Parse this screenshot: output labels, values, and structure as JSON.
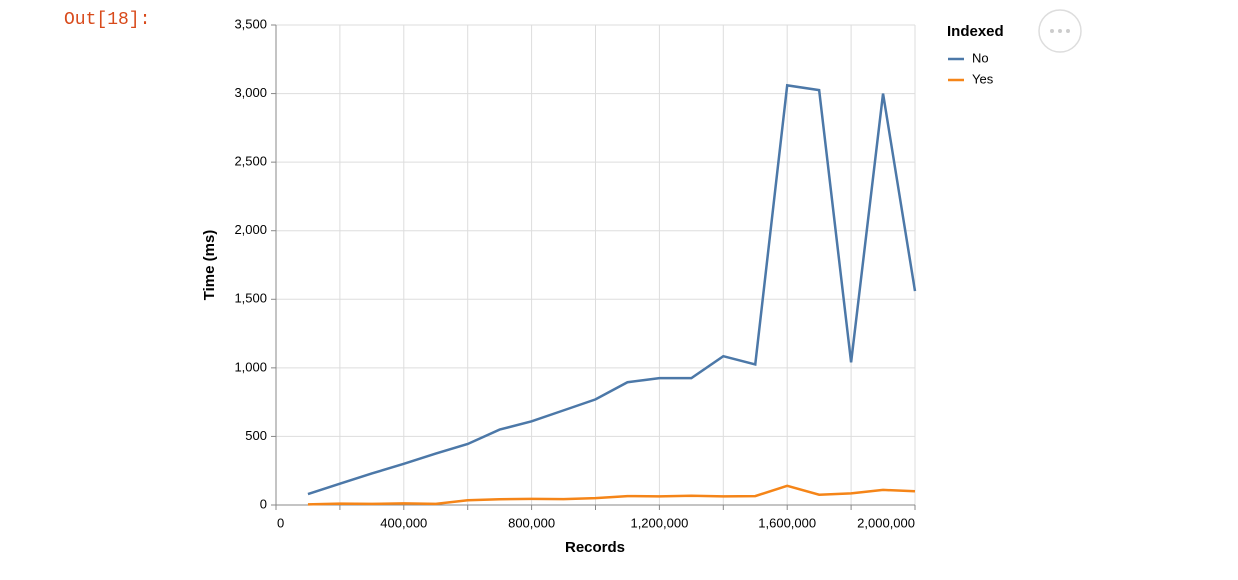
{
  "prompt": "Out[18]:",
  "chart_data": {
    "type": "line",
    "x_label": "Records",
    "y_label": "Time (ms)",
    "legend_title": "Indexed",
    "legend_position": "right",
    "grid": true,
    "x": [
      100000,
      200000,
      300000,
      400000,
      500000,
      600000,
      700000,
      800000,
      900000,
      1000000,
      1100000,
      1200000,
      1300000,
      1400000,
      1500000,
      1600000,
      1700000,
      1800000,
      1900000,
      2000000
    ],
    "series": [
      {
        "name": "No",
        "color": "#4c78a8",
        "values": [
          80,
          155,
          230,
          300,
          375,
          445,
          550,
          610,
          690,
          770,
          895,
          925,
          925,
          1085,
          1025,
          3060,
          3025,
          1040,
          3000,
          1560
        ]
      },
      {
        "name": "Yes",
        "color": "#f58518",
        "values": [
          5,
          10,
          8,
          12,
          8,
          35,
          42,
          45,
          43,
          50,
          65,
          63,
          67,
          63,
          65,
          140,
          75,
          85,
          110,
          100
        ]
      }
    ],
    "xlim": [
      0,
      2000000
    ],
    "xticks": [
      0,
      {
        "value": 400000,
        "label": "400,000"
      },
      {
        "value": 800000,
        "label": "800,000"
      },
      {
        "value": 1200000,
        "label": "1,200,000"
      },
      {
        "value": 1600000,
        "label": "1,600,000"
      },
      {
        "value": 2000000,
        "label": "2,000,000"
      }
    ],
    "xgrid": [
      0,
      200000,
      400000,
      600000,
      800000,
      1000000,
      1200000,
      1400000,
      1600000,
      1800000,
      2000000
    ],
    "ylim": [
      0,
      3500
    ],
    "yticks": [
      0,
      500,
      {
        "value": 1000,
        "label": "1,000"
      },
      {
        "value": 1500,
        "label": "1,500"
      },
      {
        "value": 2000,
        "label": "2,000"
      },
      {
        "value": 2500,
        "label": "2,500"
      },
      {
        "value": 3000,
        "label": "3,000"
      },
      {
        "value": 3500,
        "label": "3,500"
      }
    ]
  }
}
